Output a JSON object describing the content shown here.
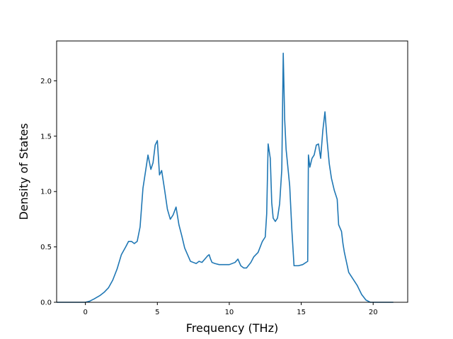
{
  "chart_data": {
    "type": "line",
    "xlabel": "Frequency (THz)",
    "ylabel": "Density of States",
    "xlim": [
      -2.0,
      22.4
    ],
    "ylim": [
      0.0,
      2.36
    ],
    "xticks": [
      0,
      5,
      10,
      15,
      20
    ],
    "yticks": [
      0.0,
      0.5,
      1.0,
      1.5,
      2.0
    ],
    "xtick_labels": [
      "0",
      "5",
      "10",
      "15",
      "20"
    ],
    "ytick_labels": [
      "0.0",
      "0.5",
      "1.0",
      "1.5",
      "2.0"
    ],
    "grid": false,
    "legend": "none",
    "series": [
      {
        "color": "#1f77b4",
        "x": [
          -2.0,
          -0.5,
          0.0,
          0.3,
          0.6,
          1.0,
          1.3,
          1.6,
          1.9,
          2.2,
          2.5,
          2.8,
          3.0,
          3.2,
          3.4,
          3.6,
          3.8,
          4.0,
          4.2,
          4.35,
          4.55,
          4.7,
          4.85,
          5.0,
          5.15,
          5.3,
          5.5,
          5.7,
          5.9,
          6.1,
          6.3,
          6.5,
          6.7,
          6.9,
          7.1,
          7.3,
          7.5,
          7.7,
          7.9,
          8.1,
          8.3,
          8.5,
          8.6,
          8.7,
          8.8,
          9.0,
          9.3,
          9.6,
          10.0,
          10.4,
          10.6,
          10.8,
          11.0,
          11.2,
          11.5,
          11.7,
          12.0,
          12.3,
          12.5,
          12.6,
          12.7,
          12.85,
          12.95,
          13.05,
          13.2,
          13.35,
          13.5,
          13.65,
          13.75,
          13.85,
          13.95,
          14.05,
          14.2,
          14.35,
          14.5,
          14.8,
          15.1,
          15.45,
          15.5,
          15.6,
          15.75,
          15.9,
          16.05,
          16.2,
          16.35,
          16.5,
          16.65,
          16.8,
          16.95,
          17.1,
          17.3,
          17.5,
          17.6,
          17.7,
          17.8,
          17.9,
          18.0,
          18.3,
          18.6,
          18.9,
          19.2,
          19.5,
          19.8,
          21.4
        ],
        "y": [
          0.0,
          0.0,
          0.0,
          0.01,
          0.03,
          0.06,
          0.09,
          0.13,
          0.2,
          0.3,
          0.43,
          0.5,
          0.55,
          0.55,
          0.53,
          0.55,
          0.68,
          1.03,
          1.2,
          1.33,
          1.2,
          1.26,
          1.42,
          1.46,
          1.15,
          1.19,
          1.02,
          0.84,
          0.75,
          0.79,
          0.86,
          0.7,
          0.6,
          0.49,
          0.43,
          0.37,
          0.36,
          0.35,
          0.37,
          0.36,
          0.39,
          0.42,
          0.43,
          0.39,
          0.36,
          0.35,
          0.34,
          0.34,
          0.34,
          0.36,
          0.39,
          0.33,
          0.31,
          0.31,
          0.36,
          0.41,
          0.45,
          0.55,
          0.59,
          0.8,
          1.43,
          1.3,
          0.9,
          0.76,
          0.73,
          0.76,
          0.89,
          1.2,
          2.25,
          1.65,
          1.38,
          1.25,
          1.05,
          0.65,
          0.33,
          0.33,
          0.34,
          0.37,
          1.33,
          1.22,
          1.3,
          1.33,
          1.42,
          1.43,
          1.3,
          1.55,
          1.72,
          1.46,
          1.25,
          1.12,
          1.01,
          0.93,
          0.7,
          0.67,
          0.64,
          0.53,
          0.45,
          0.27,
          0.21,
          0.15,
          0.07,
          0.02,
          0.0,
          0.0
        ]
      }
    ]
  }
}
